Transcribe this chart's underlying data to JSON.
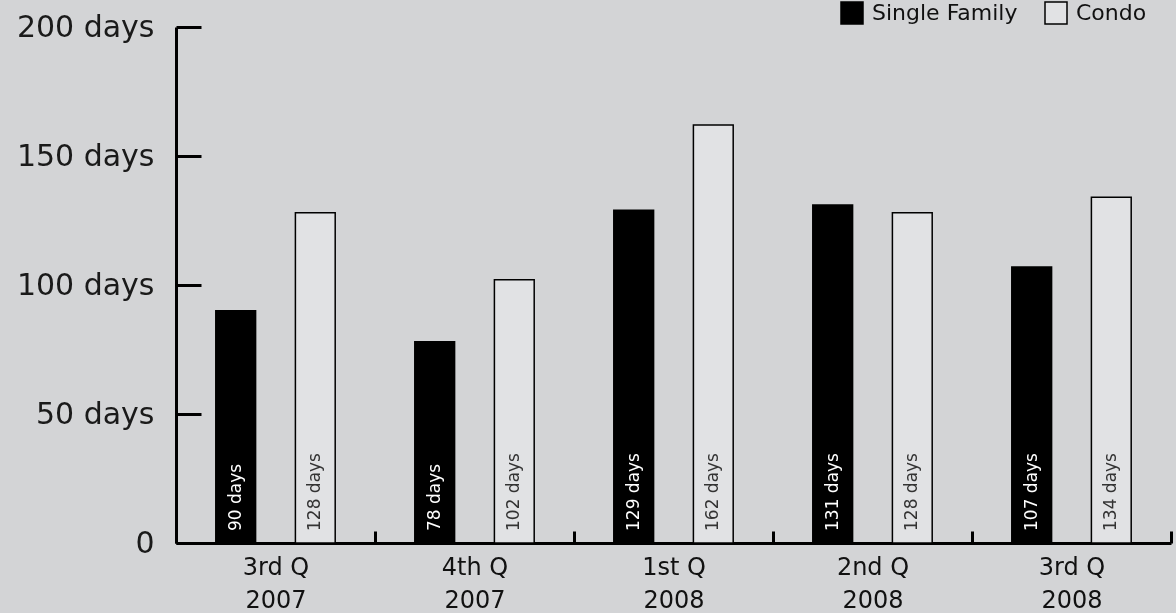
{
  "chart_data": {
    "type": "bar",
    "categories": [
      "3rd Q\n2007",
      "4th Q\n2007",
      "1st Q\n2008",
      "2nd Q\n2008",
      "3rd Q\n2008"
    ],
    "series": [
      {
        "name": "Single Family",
        "color": "#000000",
        "values": [
          90,
          78,
          129,
          131,
          107
        ],
        "value_labels": [
          "90 days",
          "78 days",
          "129 days",
          "131 days",
          "107 days"
        ]
      },
      {
        "name": "Condo",
        "color": "#e1e2e4",
        "values": [
          128,
          102,
          162,
          128,
          134
        ],
        "value_labels": [
          "128 days",
          "102 days",
          "162 days",
          "128 days",
          "134 days"
        ]
      }
    ],
    "ylim": [
      0,
      200
    ],
    "yticks": [
      0,
      {
        "value": 50,
        "label": "50 days"
      },
      {
        "value": 100,
        "label": "100 days"
      },
      {
        "value": 150,
        "label": "150 days"
      },
      {
        "value": 200,
        "label": "200 days"
      }
    ],
    "legend": "top right"
  }
}
